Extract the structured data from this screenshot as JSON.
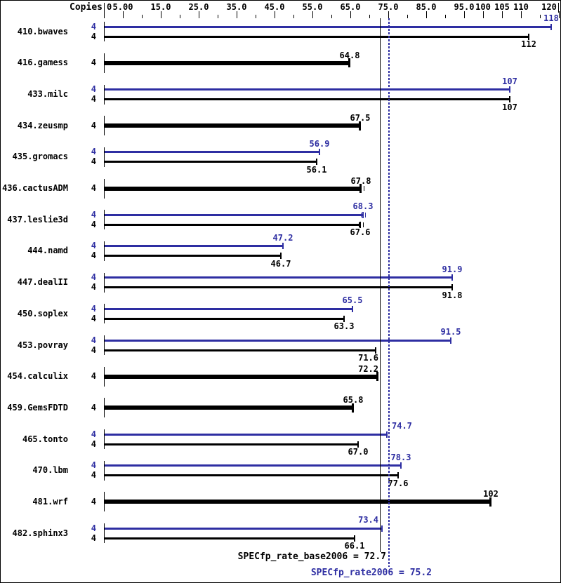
{
  "colors": {
    "peak_blue": "#2e2ea2",
    "base_black": "#000000",
    "background": "#ffffff",
    "border": "#000000"
  },
  "chart_data": {
    "type": "bar",
    "orientation": "horizontal",
    "title": "",
    "copies_header": "Copies",
    "xlabel": "",
    "ylabel": "",
    "xlim": [
      0,
      121
    ],
    "tick_step": 5,
    "grid": false,
    "legend_position": "none",
    "axis_labels": [
      {
        "v": 0,
        "t": "0"
      },
      {
        "v": 5,
        "t": "5.00"
      },
      {
        "v": 15,
        "t": "15.0"
      },
      {
        "v": 25,
        "t": "25.0"
      },
      {
        "v": 35,
        "t": "35.0"
      },
      {
        "v": 45,
        "t": "45.0"
      },
      {
        "v": 55,
        "t": "55.0"
      },
      {
        "v": 65,
        "t": "65.0"
      },
      {
        "v": 75,
        "t": "75.0"
      },
      {
        "v": 85,
        "t": "85.0"
      },
      {
        "v": 95,
        "t": "95.0"
      },
      {
        "v": 100,
        "t": "100"
      },
      {
        "v": 105,
        "t": "105"
      },
      {
        "v": 110,
        "t": "110"
      },
      {
        "v": 120,
        "t": "120"
      }
    ],
    "benchmarks": [
      {
        "name": "410.bwaves",
        "copies": "4",
        "peak": {
          "value": 118,
          "label": "118"
        },
        "base": {
          "value": 112,
          "label": "112"
        }
      },
      {
        "name": "416.gamess",
        "copies": "4",
        "single": {
          "value": 64.8,
          "label": "64.8"
        }
      },
      {
        "name": "433.milc",
        "copies": "4",
        "peak": {
          "value": 107,
          "label": "107"
        },
        "base": {
          "value": 107,
          "label": "107"
        }
      },
      {
        "name": "434.zeusmp",
        "copies": "4",
        "single": {
          "value": 67.5,
          "label": "67.5"
        }
      },
      {
        "name": "435.gromacs",
        "copies": "4",
        "peak": {
          "value": 56.9,
          "label": "56.9"
        },
        "base": {
          "value": 56.1,
          "label": "56.1"
        }
      },
      {
        "name": "436.cactusADM",
        "copies": "4",
        "single": {
          "value": 67.8,
          "label": "67.8",
          "run_ticks": [
            68.5
          ]
        }
      },
      {
        "name": "437.leslie3d",
        "copies": "4",
        "peak": {
          "value": 68.3,
          "label": "68.3",
          "run_ticks": [
            67.7,
            68.8
          ]
        },
        "base": {
          "value": 67.6,
          "label": "67.6",
          "run_ticks": [
            67.2,
            68.3
          ]
        }
      },
      {
        "name": "444.namd",
        "copies": "4",
        "peak": {
          "value": 47.2,
          "label": "47.2"
        },
        "base": {
          "value": 46.7,
          "label": "46.7"
        }
      },
      {
        "name": "447.dealII",
        "copies": "4",
        "peak": {
          "value": 91.9,
          "label": "91.9"
        },
        "base": {
          "value": 91.8,
          "label": "91.8"
        }
      },
      {
        "name": "450.soplex",
        "copies": "4",
        "peak": {
          "value": 65.5,
          "label": "65.5"
        },
        "base": {
          "value": 63.3,
          "label": "63.3"
        }
      },
      {
        "name": "453.povray",
        "copies": "4",
        "peak": {
          "value": 91.5,
          "label": "91.5"
        },
        "base": {
          "value": 71.6,
          "label": "71.6"
        }
      },
      {
        "name": "454.calculix",
        "copies": "4",
        "single": {
          "value": 72.2,
          "label": "72.2"
        }
      },
      {
        "name": "459.GemsFDTD",
        "copies": "4",
        "single": {
          "value": 65.8,
          "label": "65.8"
        }
      },
      {
        "name": "465.tonto",
        "copies": "4",
        "peak": {
          "value": 74.7,
          "label": "74.7"
        },
        "base": {
          "value": 67.0,
          "label": "67.0"
        }
      },
      {
        "name": "470.lbm",
        "copies": "4",
        "peak": {
          "value": 78.3,
          "label": "78.3"
        },
        "base": {
          "value": 77.6,
          "label": "77.6"
        }
      },
      {
        "name": "481.wrf",
        "copies": "4",
        "single": {
          "value": 102,
          "label": "102"
        }
      },
      {
        "name": "482.sphinx3",
        "copies": "4",
        "peak": {
          "value": 73.4,
          "label": "73.4"
        },
        "base": {
          "value": 66.1,
          "label": "66.1"
        }
      }
    ],
    "reference_lines": [
      {
        "metric": "SPECfp_rate_base2006",
        "value": 72.7,
        "style": "solid",
        "color": "#000000"
      },
      {
        "metric": "SPECfp_rate2006",
        "value": 75.2,
        "style": "dotted",
        "color": "#2e2ea2"
      }
    ],
    "summary": {
      "base": {
        "label": "SPECfp_rate_base2006 = 72.7",
        "value": 72.7
      },
      "peak": {
        "label": "SPECfp_rate2006 = 75.2",
        "value": 75.2
      }
    }
  }
}
